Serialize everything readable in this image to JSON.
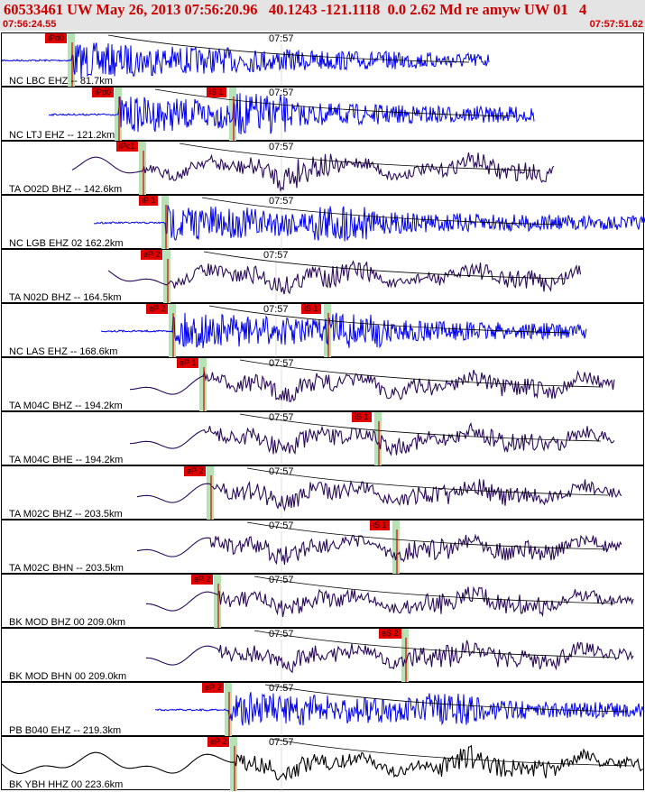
{
  "header": {
    "title": "60533461 UW May 26, 2013 07:56:20.96   40.1243 -121.1118  0.0 2.62 Md re amyw UW 01   4",
    "window_start": "07:56:24.55",
    "window_end": "07:57:51.62"
  },
  "minute_label": "07:57",
  "colors": {
    "header_bg": "#e4e4e4",
    "header_text": "#cc0000",
    "trace_blue": "#0000ee",
    "trace_purple": "#2a0a5a",
    "trace_black": "#000000",
    "pick_red": "#e00000",
    "pick_shade": "#b6e3b6",
    "travel_curve": "#000000"
  },
  "traces": [
    {
      "station": "NC LBC EHZ -- 81.7km",
      "picks": [
        {
          "label": "iPd0",
          "kind": "P"
        }
      ],
      "color": "blue"
    },
    {
      "station": "NC LTJ EHZ -- 121.2km",
      "picks": [
        {
          "label": "iPd0",
          "kind": "P"
        },
        {
          "label": "iS 1",
          "kind": "S"
        }
      ],
      "color": "blue"
    },
    {
      "station": "TA O02D BHZ -- 142.6km",
      "picks": [
        {
          "label": "iPc1",
          "kind": "P"
        }
      ],
      "color": "purple"
    },
    {
      "station": "NC LGB EHZ 02 162.2km",
      "picks": [
        {
          "label": "iP 1",
          "kind": "P"
        }
      ],
      "color": "blue"
    },
    {
      "station": "TA N02D BHZ -- 164.5km",
      "picks": [
        {
          "label": "eP 2",
          "kind": "P"
        }
      ],
      "color": "purple"
    },
    {
      "station": "NC LAS EHZ -- 168.6km",
      "picks": [
        {
          "label": "eP 2",
          "kind": "P"
        },
        {
          "label": "iS 1",
          "kind": "S"
        }
      ],
      "color": "blue"
    },
    {
      "station": "TA M04C BHZ -- 194.2km",
      "picks": [
        {
          "label": "eP 1",
          "kind": "P"
        }
      ],
      "color": "purple"
    },
    {
      "station": "TA M04C BHE -- 194.2km",
      "picks": [
        {
          "label": "iS 1",
          "kind": "S"
        }
      ],
      "color": "purple"
    },
    {
      "station": "TA M02C BHZ -- 203.5km",
      "picks": [
        {
          "label": "eP 2",
          "kind": "P"
        }
      ],
      "color": "purple"
    },
    {
      "station": "TA M02C BHN -- 203.5km",
      "picks": [
        {
          "label": "iS 1",
          "kind": "S"
        }
      ],
      "color": "purple"
    },
    {
      "station": "BK MOD BHZ 00 209.0km",
      "picks": [
        {
          "label": "eP 2",
          "kind": "P"
        }
      ],
      "color": "purple"
    },
    {
      "station": "BK MOD BHN 00 209.0km",
      "picks": [
        {
          "label": "eS 2",
          "kind": "S"
        }
      ],
      "color": "purple"
    },
    {
      "station": "PB B040 EHZ -- 219.3km",
      "picks": [
        {
          "label": "eP 2",
          "kind": "P"
        }
      ],
      "color": "blue"
    },
    {
      "station": "BK YBH HHZ 00 223.6km",
      "picks": [
        {
          "label": "eP 2",
          "kind": "P"
        }
      ],
      "color": "black"
    }
  ]
}
